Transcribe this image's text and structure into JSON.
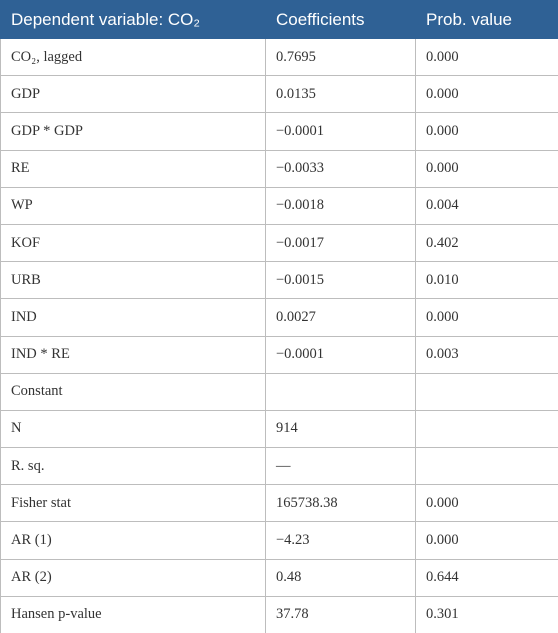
{
  "table": {
    "header": [
      "Dependent variable: CO₂",
      "Coefficients",
      "Prob. value"
    ],
    "rows": [
      [
        "CO₂, lagged",
        "0.7695",
        "0.000"
      ],
      [
        "GDP",
        "0.0135",
        "0.000"
      ],
      [
        "GDP * GDP",
        "−0.0001",
        "0.000"
      ],
      [
        "RE",
        "−0.0033",
        "0.000"
      ],
      [
        "WP",
        "−0.0018",
        "0.004"
      ],
      [
        "KOF",
        "−0.0017",
        "0.402"
      ],
      [
        "URB",
        "−0.0015",
        "0.010"
      ],
      [
        "IND",
        "0.0027",
        "0.000"
      ],
      [
        "IND * RE",
        "−0.0001",
        "0.003"
      ],
      [
        "Constant",
        null,
        null
      ],
      [
        "N",
        "914",
        null
      ],
      [
        "R. sq.",
        "—",
        null
      ],
      [
        "Fisher stat",
        "165738.38",
        "0.000"
      ],
      [
        "AR (1)",
        "−4.23",
        "0.000"
      ],
      [
        "AR (2)",
        "0.48",
        "0.644"
      ],
      [
        "Hansen p-value",
        "37.78",
        "0.301"
      ]
    ]
  }
}
